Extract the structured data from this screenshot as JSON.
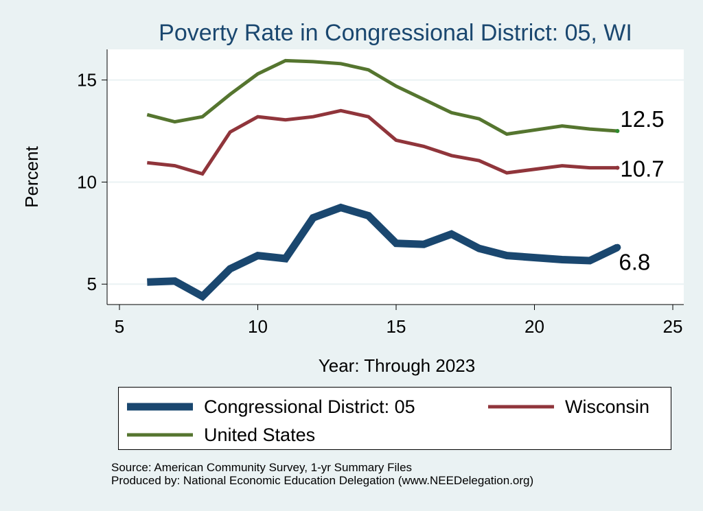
{
  "chart_data": {
    "type": "line",
    "title": "Poverty Rate in Congressional District:  05, WI",
    "xlabel": "Year: Through 2023",
    "ylabel": "Percent",
    "xlim": [
      5,
      25
    ],
    "ylim": [
      4.0,
      16.5
    ],
    "xticks": [
      5,
      10,
      15,
      20,
      25
    ],
    "yticks": [
      5,
      10,
      15
    ],
    "x_tick_labels": [
      "5",
      "10",
      "15",
      "20",
      "25"
    ],
    "y_tick_labels": [
      "5",
      "10",
      "15"
    ],
    "grid": "horizontal",
    "legend_position": "bottom",
    "series": [
      {
        "name": "Congressional District:  05",
        "color": "#1a476f",
        "x": [
          6,
          7,
          8,
          9,
          10,
          11,
          12,
          13,
          14,
          15,
          16,
          17,
          18,
          19,
          21,
          22,
          23
        ],
        "y": [
          5.1,
          5.15,
          4.4,
          5.75,
          6.4,
          6.25,
          8.25,
          8.75,
          8.35,
          7.0,
          6.95,
          7.45,
          6.75,
          6.4,
          6.2,
          6.15,
          6.8
        ],
        "end_label": "6.8"
      },
      {
        "name": "Wisconsin",
        "color": "#90353b",
        "x": [
          6,
          7,
          8,
          9,
          10,
          11,
          12,
          13,
          14,
          15,
          16,
          17,
          18,
          19,
          21,
          22,
          23
        ],
        "y": [
          10.95,
          10.8,
          10.4,
          12.45,
          13.2,
          13.05,
          13.2,
          13.5,
          13.2,
          12.05,
          11.75,
          11.3,
          11.05,
          10.45,
          10.8,
          10.7,
          10.7
        ],
        "end_label": "10.7"
      },
      {
        "name": "United States",
        "color": "#55752f",
        "x": [
          6,
          7,
          8,
          9,
          10,
          11,
          12,
          13,
          14,
          15,
          16,
          17,
          18,
          19,
          21,
          22,
          23
        ],
        "y": [
          13.3,
          12.95,
          13.2,
          14.3,
          15.3,
          15.95,
          15.9,
          15.8,
          15.5,
          14.7,
          14.05,
          13.4,
          13.1,
          12.35,
          12.75,
          12.6,
          12.5
        ],
        "end_label": "12.5"
      }
    ]
  },
  "legend": {
    "items": [
      {
        "label": "Congressional District:  05",
        "color": "#1a476f"
      },
      {
        "label": "Wisconsin",
        "color": "#90353b"
      },
      {
        "label": "United States",
        "color": "#55752f"
      }
    ]
  },
  "source": {
    "line1": "Source: American Community Survey, 1-yr Summary Files",
    "line2": "Produced by: National Economic Education Delegation (www.NEEDelegation.org)"
  },
  "colors": {
    "background": "#eaf2f3",
    "plot_region": "#ffffff",
    "gridline": "#eaf2f3",
    "title": "#1a476f"
  }
}
